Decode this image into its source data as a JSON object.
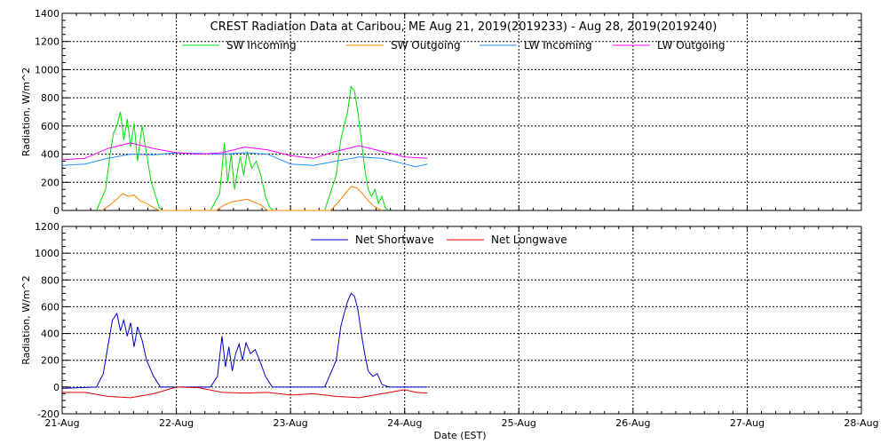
{
  "chart_data": [
    {
      "type": "line",
      "title": "CREST Radiation Data at Caribou, ME   Aug 21, 2019(2019233) - Aug 28, 2019(2019240)",
      "ylabel": "Radiation, W/m^2",
      "xlabel": "",
      "xlim": [
        0,
        7
      ],
      "ylim": [
        0,
        1400
      ],
      "yticks": [
        0,
        200,
        400,
        600,
        800,
        1000,
        1200,
        1400
      ],
      "grid": true,
      "legend": "top",
      "series": [
        {
          "name": "SW Incoming",
          "color": "#00dd00",
          "points": [
            [
              0.3,
              0
            ],
            [
              0.38,
              150
            ],
            [
              0.42,
              400
            ],
            [
              0.45,
              550
            ],
            [
              0.48,
              600
            ],
            [
              0.51,
              700
            ],
            [
              0.54,
              500
            ],
            [
              0.57,
              650
            ],
            [
              0.6,
              450
            ],
            [
              0.63,
              620
            ],
            [
              0.66,
              350
            ],
            [
              0.7,
              600
            ],
            [
              0.74,
              400
            ],
            [
              0.78,
              200
            ],
            [
              0.82,
              100
            ],
            [
              0.85,
              20
            ],
            [
              0.88,
              0
            ],
            [
              1.3,
              0
            ],
            [
              1.38,
              120
            ],
            [
              1.42,
              480
            ],
            [
              1.45,
              200
            ],
            [
              1.48,
              400
            ],
            [
              1.51,
              150
            ],
            [
              1.54,
              300
            ],
            [
              1.56,
              380
            ],
            [
              1.59,
              250
            ],
            [
              1.62,
              420
            ],
            [
              1.66,
              300
            ],
            [
              1.7,
              350
            ],
            [
              1.74,
              250
            ],
            [
              1.78,
              100
            ],
            [
              1.82,
              20
            ],
            [
              1.85,
              0
            ],
            [
              2.3,
              0
            ],
            [
              2.36,
              150
            ],
            [
              2.4,
              250
            ],
            [
              2.44,
              500
            ],
            [
              2.47,
              600
            ],
            [
              2.5,
              700
            ],
            [
              2.53,
              880
            ],
            [
              2.56,
              850
            ],
            [
              2.59,
              700
            ],
            [
              2.62,
              500
            ],
            [
              2.65,
              300
            ],
            [
              2.68,
              150
            ],
            [
              2.71,
              100
            ],
            [
              2.74,
              150
            ],
            [
              2.77,
              50
            ],
            [
              2.8,
              100
            ],
            [
              2.83,
              20
            ],
            [
              2.86,
              0
            ]
          ]
        },
        {
          "name": "SW Outgoing",
          "color": "#ff7f00",
          "points": [
            [
              0.35,
              0
            ],
            [
              0.42,
              40
            ],
            [
              0.48,
              80
            ],
            [
              0.53,
              120
            ],
            [
              0.58,
              100
            ],
            [
              0.63,
              110
            ],
            [
              0.68,
              70
            ],
            [
              0.74,
              50
            ],
            [
              0.8,
              20
            ],
            [
              0.85,
              0
            ],
            [
              1.35,
              0
            ],
            [
              1.42,
              40
            ],
            [
              1.48,
              60
            ],
            [
              1.55,
              70
            ],
            [
              1.62,
              80
            ],
            [
              1.68,
              60
            ],
            [
              1.74,
              40
            ],
            [
              1.8,
              0
            ],
            [
              2.35,
              0
            ],
            [
              2.42,
              60
            ],
            [
              2.48,
              120
            ],
            [
              2.53,
              170
            ],
            [
              2.58,
              160
            ],
            [
              2.63,
              120
            ],
            [
              2.68,
              70
            ],
            [
              2.73,
              30
            ],
            [
              2.8,
              0
            ]
          ]
        },
        {
          "name": "LW Incoming",
          "color": "#1e90ff",
          "points": [
            [
              0.0,
              320
            ],
            [
              0.2,
              330
            ],
            [
              0.4,
              370
            ],
            [
              0.6,
              400
            ],
            [
              0.8,
              395
            ],
            [
              1.0,
              410
            ],
            [
              1.2,
              405
            ],
            [
              1.4,
              400
            ],
            [
              1.6,
              410
            ],
            [
              1.8,
              400
            ],
            [
              2.0,
              330
            ],
            [
              2.2,
              320
            ],
            [
              2.4,
              350
            ],
            [
              2.6,
              380
            ],
            [
              2.8,
              370
            ],
            [
              3.0,
              330
            ],
            [
              3.1,
              310
            ],
            [
              3.2,
              330
            ]
          ]
        },
        {
          "name": "LW Outgoing",
          "color": "#ff00ff",
          "points": [
            [
              0.0,
              360
            ],
            [
              0.2,
              370
            ],
            [
              0.4,
              440
            ],
            [
              0.6,
              480
            ],
            [
              0.8,
              440
            ],
            [
              1.0,
              410
            ],
            [
              1.2,
              400
            ],
            [
              1.4,
              410
            ],
            [
              1.6,
              450
            ],
            [
              1.8,
              430
            ],
            [
              2.0,
              390
            ],
            [
              2.2,
              370
            ],
            [
              2.4,
              420
            ],
            [
              2.6,
              460
            ],
            [
              2.8,
              420
            ],
            [
              3.0,
              380
            ],
            [
              3.2,
              370
            ]
          ]
        }
      ]
    },
    {
      "type": "line",
      "title": "",
      "ylabel": "Radiation, W/m^2",
      "xlabel": "Date (EST)",
      "xlim": [
        0,
        7
      ],
      "ylim": [
        -200,
        1200
      ],
      "yticks": [
        -200,
        0,
        200,
        400,
        600,
        800,
        1000,
        1200
      ],
      "grid": true,
      "legend": "top",
      "series": [
        {
          "name": "Net Shortwave",
          "color": "#0000cc",
          "points": [
            [
              0.0,
              -10
            ],
            [
              0.3,
              0
            ],
            [
              0.36,
              100
            ],
            [
              0.4,
              300
            ],
            [
              0.44,
              500
            ],
            [
              0.48,
              550
            ],
            [
              0.51,
              420
            ],
            [
              0.54,
              500
            ],
            [
              0.57,
              380
            ],
            [
              0.6,
              480
            ],
            [
              0.63,
              300
            ],
            [
              0.66,
              450
            ],
            [
              0.7,
              350
            ],
            [
              0.74,
              200
            ],
            [
              0.8,
              80
            ],
            [
              0.86,
              0
            ],
            [
              1.3,
              0
            ],
            [
              1.36,
              80
            ],
            [
              1.4,
              380
            ],
            [
              1.43,
              150
            ],
            [
              1.46,
              300
            ],
            [
              1.49,
              120
            ],
            [
              1.52,
              250
            ],
            [
              1.55,
              320
            ],
            [
              1.58,
              200
            ],
            [
              1.61,
              330
            ],
            [
              1.65,
              250
            ],
            [
              1.69,
              280
            ],
            [
              1.73,
              200
            ],
            [
              1.78,
              80
            ],
            [
              1.84,
              0
            ],
            [
              2.3,
              0
            ],
            [
              2.36,
              120
            ],
            [
              2.4,
              200
            ],
            [
              2.44,
              450
            ],
            [
              2.47,
              550
            ],
            [
              2.5,
              640
            ],
            [
              2.53,
              700
            ],
            [
              2.56,
              680
            ],
            [
              2.59,
              580
            ],
            [
              2.62,
              400
            ],
            [
              2.65,
              250
            ],
            [
              2.68,
              120
            ],
            [
              2.72,
              80
            ],
            [
              2.76,
              100
            ],
            [
              2.8,
              20
            ],
            [
              2.86,
              0
            ],
            [
              3.2,
              0
            ]
          ]
        },
        {
          "name": "Net Longwave",
          "color": "#dd0000",
          "points": [
            [
              0.0,
              -40
            ],
            [
              0.2,
              -40
            ],
            [
              0.4,
              -70
            ],
            [
              0.6,
              -80
            ],
            [
              0.8,
              -50
            ],
            [
              1.0,
              0
            ],
            [
              1.2,
              -5
            ],
            [
              1.4,
              -40
            ],
            [
              1.6,
              -45
            ],
            [
              1.8,
              -40
            ],
            [
              2.0,
              -60
            ],
            [
              2.2,
              -50
            ],
            [
              2.4,
              -70
            ],
            [
              2.6,
              -80
            ],
            [
              2.8,
              -50
            ],
            [
              3.0,
              -20
            ],
            [
              3.1,
              -40
            ],
            [
              3.2,
              -45
            ]
          ]
        }
      ]
    }
  ],
  "xticks": [
    "21-Aug",
    "22-Aug",
    "23-Aug",
    "24-Aug",
    "25-Aug",
    "26-Aug",
    "27-Aug",
    "28-Aug"
  ]
}
